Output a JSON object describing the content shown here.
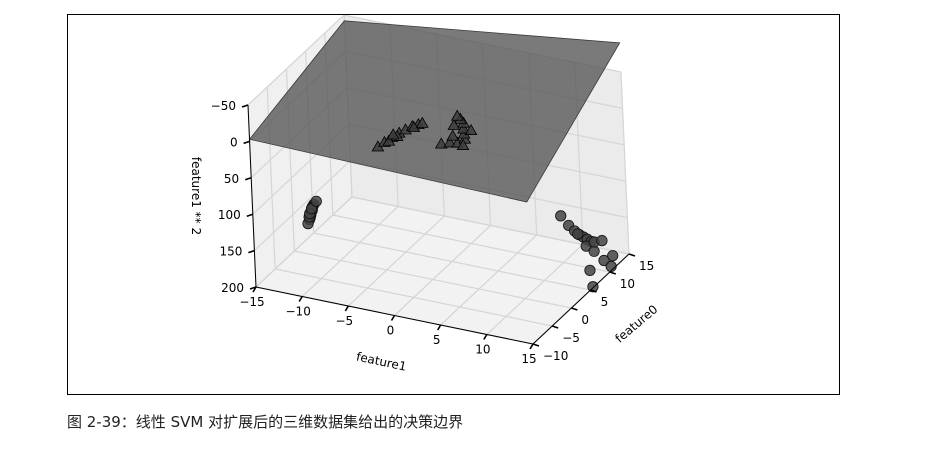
{
  "caption": "图 2-39：线性 SVM 对扩展后的三维数据集给出的决策边界",
  "chart_data": {
    "type": "scatter",
    "projection": "3d",
    "grid": true,
    "xlabel": "feature0",
    "ylabel": "feature1",
    "zlabel": "feature1 ** 2",
    "xlim": [
      -10,
      15
    ],
    "ylim": [
      -15,
      15
    ],
    "zlim": [
      -50,
      200
    ],
    "z_axis_inverted": true,
    "xticks": [
      -10,
      -5,
      0,
      5,
      10,
      15
    ],
    "xtick_labels": [
      "−10",
      "−5",
      "0",
      "5",
      "10",
      "15"
    ],
    "yticks": [
      -15,
      -10,
      -5,
      0,
      5,
      10,
      15
    ],
    "ytick_labels": [
      "−15",
      "−10",
      "−5",
      "0",
      "5",
      "10",
      "15"
    ],
    "zticks": [
      -50,
      0,
      50,
      100,
      150,
      200
    ],
    "ztick_labels": [
      "−50",
      "0",
      "50",
      "100",
      "150",
      "200"
    ],
    "decision_plane": {
      "corners": [
        {
          "x": -10,
          "y": -15,
          "z": -3
        },
        {
          "x": 15,
          "y": -15,
          "z": -42
        },
        {
          "x": 15,
          "y": 15,
          "z": -90
        },
        {
          "x": -10,
          "y": 15,
          "z": 5
        }
      ],
      "color": "#555555"
    },
    "series": [
      {
        "marker": "circle",
        "color": "#444444",
        "points": [
          {
            "x": -9.5,
            "y": -8.5,
            "z": 72
          },
          {
            "x": -9,
            "y": -8.9,
            "z": 79
          },
          {
            "x": -8.5,
            "y": -9.1,
            "z": 83
          },
          {
            "x": -8,
            "y": -9.4,
            "z": 88
          },
          {
            "x": -7.5,
            "y": -9.7,
            "z": 94
          },
          {
            "x": -7,
            "y": -9.8,
            "z": 96
          },
          {
            "x": -6.8,
            "y": -10.1,
            "z": 102
          },
          {
            "x": -6.3,
            "y": -10.3,
            "z": 106
          },
          {
            "x": -5.8,
            "y": -10.5,
            "z": 110
          },
          {
            "x": -5.3,
            "y": -10.8,
            "z": 117
          },
          {
            "x": -4.8,
            "y": -11.1,
            "z": 123
          },
          {
            "x": -4.3,
            "y": -11.5,
            "z": 132
          },
          {
            "x": -6,
            "y": -10.6,
            "z": 112
          },
          {
            "x": -7.2,
            "y": -10,
            "z": 100
          },
          {
            "x": -8.3,
            "y": -9.3,
            "z": 86
          },
          {
            "x": -10,
            "y": -8,
            "z": 64
          },
          {
            "x": 7.5,
            "y": 11,
            "z": 121
          },
          {
            "x": 8,
            "y": 11.6,
            "z": 135
          },
          {
            "x": 8.5,
            "y": 12,
            "z": 144
          },
          {
            "x": 9,
            "y": 12.3,
            "z": 151
          },
          {
            "x": 9.5,
            "y": 12.5,
            "z": 156
          },
          {
            "x": 10,
            "y": 12.7,
            "z": 161
          },
          {
            "x": 10.5,
            "y": 12.9,
            "z": 166
          },
          {
            "x": 9.2,
            "y": 12.9,
            "z": 166
          },
          {
            "x": 10.2,
            "y": 13.3,
            "z": 177
          },
          {
            "x": 11,
            "y": 13,
            "z": 169
          },
          {
            "x": 8.8,
            "y": 12.2,
            "z": 149
          },
          {
            "x": 7.8,
            "y": 13.8,
            "z": 190
          },
          {
            "x": 11.2,
            "y": 13.9,
            "z": 193
          },
          {
            "x": 12.5,
            "y": 13.2,
            "z": 174
          },
          {
            "x": 12,
            "y": 14.3,
            "z": 204
          },
          {
            "x": 13.2,
            "y": 14,
            "z": 196
          },
          {
            "x": 7,
            "y": 14.4,
            "z": 207
          }
        ]
      },
      {
        "marker": "triangle",
        "color": "#3c3c3c",
        "points": [
          {
            "x": -2,
            "y": -4.5,
            "z": 20
          },
          {
            "x": -1,
            "y": -4.2,
            "z": 18
          },
          {
            "x": 0,
            "y": -3.8,
            "z": 15
          },
          {
            "x": 0.5,
            "y": -3.2,
            "z": 10
          },
          {
            "x": 1.2,
            "y": -2.8,
            "z": 8
          },
          {
            "x": 1.8,
            "y": -2.3,
            "z": 5
          },
          {
            "x": 2.2,
            "y": -1.8,
            "z": 3
          },
          {
            "x": -0.5,
            "y": -3,
            "z": 9
          },
          {
            "x": 1.5,
            "y": -2,
            "z": 4
          },
          {
            "x": -1.5,
            "y": -3.5,
            "z": 12
          },
          {
            "x": 2.5,
            "y": -1.5,
            "z": 2
          },
          {
            "x": 0.8,
            "y": -4,
            "z": 16
          },
          {
            "x": -1,
            "y": 2,
            "z": 4
          },
          {
            "x": 0,
            "y": 2.5,
            "z": 6
          },
          {
            "x": 0.8,
            "y": 3,
            "z": 9
          },
          {
            "x": 1.5,
            "y": 2.2,
            "z": 5
          },
          {
            "x": 2.2,
            "y": 3.2,
            "z": 10
          },
          {
            "x": 3,
            "y": 2.8,
            "z": 8
          },
          {
            "x": 3.8,
            "y": 2.4,
            "z": 6
          },
          {
            "x": 4.3,
            "y": 3,
            "z": 9
          },
          {
            "x": 4.8,
            "y": 2,
            "z": 4
          },
          {
            "x": 5.2,
            "y": 1.5,
            "z": 2
          },
          {
            "x": 3.5,
            "y": 1.5,
            "z": 2
          },
          {
            "x": 1,
            "y": 3.5,
            "z": 12
          },
          {
            "x": 5.6,
            "y": 1,
            "z": 1
          }
        ]
      }
    ]
  }
}
